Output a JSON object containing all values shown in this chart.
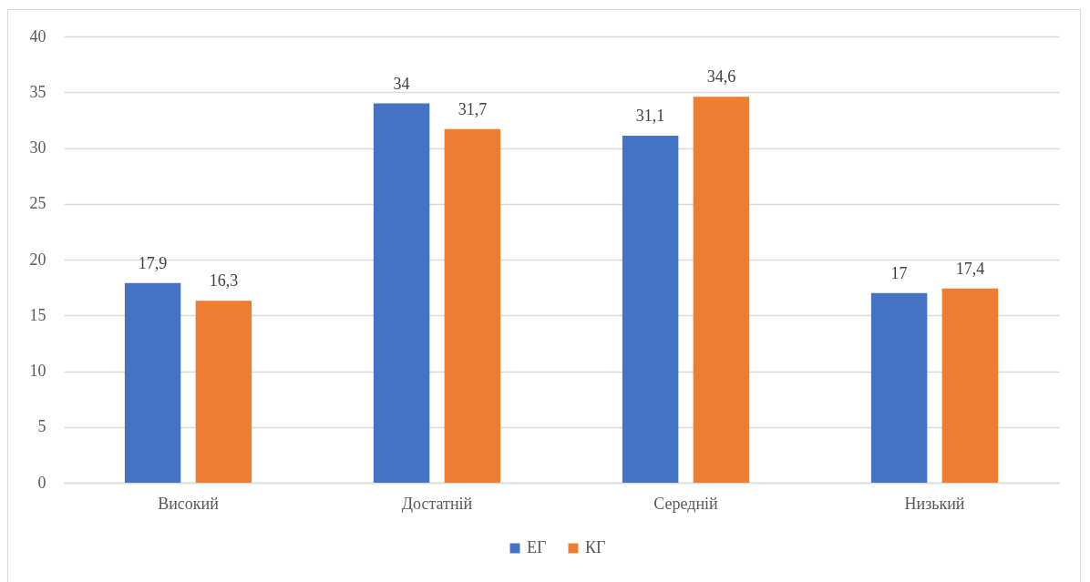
{
  "chart_data": {
    "type": "bar",
    "categories": [
      "Високий",
      "Достатній",
      "Середній",
      "Низький"
    ],
    "series": [
      {
        "name": "ЕГ",
        "color": "#4472c4",
        "values": [
          17.9,
          34,
          31.1,
          17
        ],
        "value_labels": [
          "17,9",
          "34",
          "31,1",
          "17"
        ]
      },
      {
        "name": "КГ",
        "color": "#ed7d31",
        "values": [
          16.3,
          31.7,
          34.6,
          17.4
        ],
        "value_labels": [
          "16,3",
          "31,7",
          "34,6",
          "17,4"
        ]
      }
    ],
    "ylim": [
      0,
      40
    ],
    "yticks": [
      0,
      5,
      10,
      15,
      20,
      25,
      30,
      35,
      40
    ],
    "grid": "y",
    "legend": "bottom"
  }
}
